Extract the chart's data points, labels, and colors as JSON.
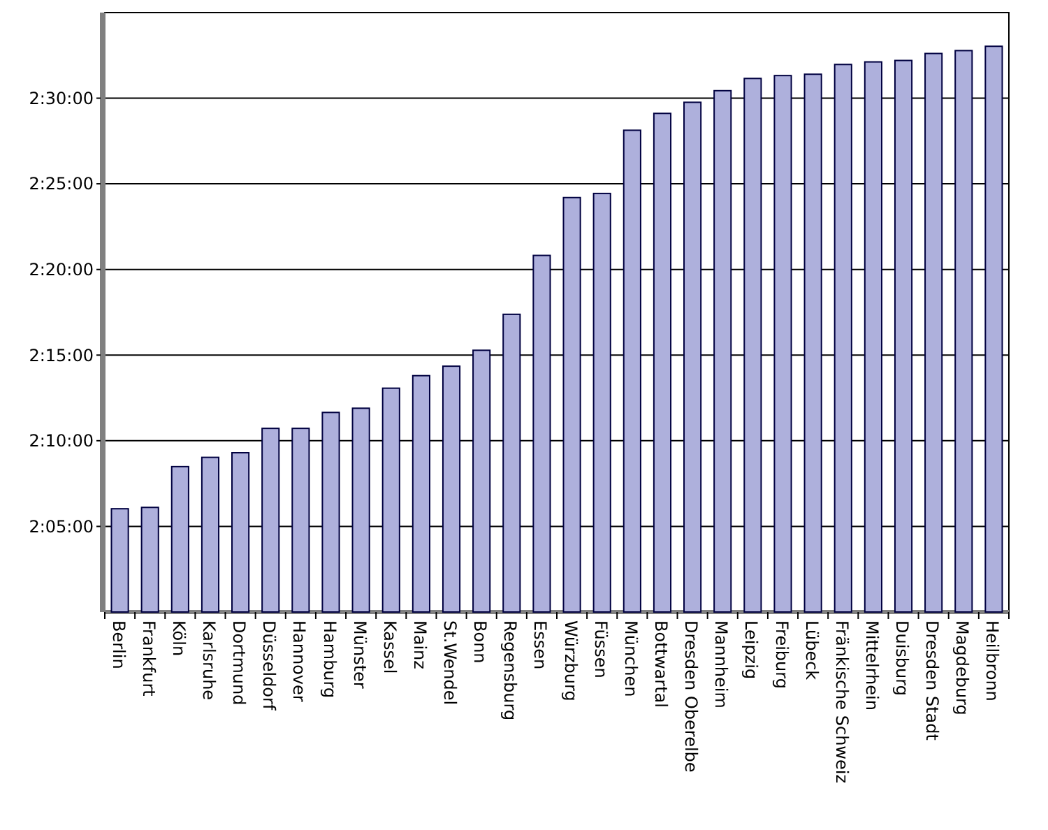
{
  "chart_data": {
    "type": "bar",
    "categories": [
      "Berlin",
      "Frankfurt",
      "Köln",
      "Karlsruhe",
      "Dortmund",
      "Düsseldorf",
      "Hannover",
      "Hamburg",
      "Münster",
      "Kassel",
      "Mainz",
      "St.Wendel",
      "Bonn",
      "Regensburg",
      "Essen",
      "Würzburg",
      "Füssen",
      "München",
      "Bottwartal",
      "Dresden Oberelbe",
      "Mannheim",
      "Leipzig",
      "Freiburg",
      "Lübeck",
      "Fränkische Schweiz",
      "Mittelrhein",
      "Duisburg",
      "Dresden Stadt",
      "Magdeburg",
      "Heilbronn"
    ],
    "values": [
      2.1005,
      2.1018,
      2.1415,
      2.1505,
      2.155,
      2.1787,
      2.1787,
      2.1942,
      2.1983,
      2.2178,
      2.23,
      2.2392,
      2.2547,
      2.2897,
      2.347,
      2.4033,
      2.4073,
      2.4688,
      2.4852,
      2.496,
      2.5073,
      2.5192,
      2.522,
      2.5233,
      2.5328,
      2.5353,
      2.5367,
      2.5435,
      2.5463,
      2.5505
    ],
    "color": "#aeb0dc",
    "ylim": [
      2,
      2.5833
    ],
    "yticks": [
      {
        "value": 2.0833,
        "label": "2:05:00"
      },
      {
        "value": 2.1667,
        "label": "2:10:00"
      },
      {
        "value": 2.25,
        "label": "2:15:00"
      },
      {
        "value": 2.3333,
        "label": "2:20:00"
      },
      {
        "value": 2.4167,
        "label": "2:25:00"
      },
      {
        "value": 2.5,
        "label": "2:30:00"
      }
    ],
    "grid": "y"
  }
}
